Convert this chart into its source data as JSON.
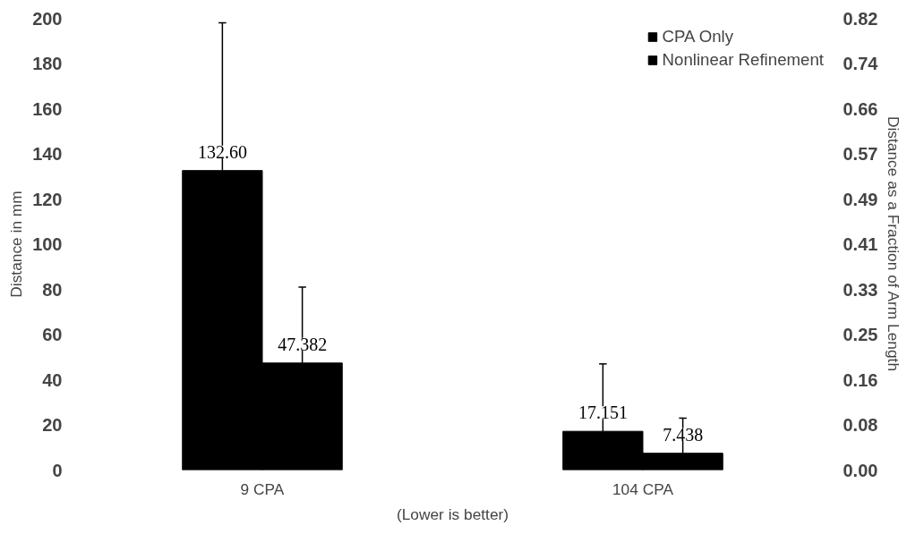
{
  "chart_data": {
    "type": "bar",
    "categories": [
      "9 CPA",
      "104 CPA"
    ],
    "xlabel": "(Lower is better)",
    "ylabel": "Distance in mm",
    "y2label": "Distance as a Fraction of Arm Length",
    "series": [
      {
        "name": "CPA Only",
        "color": "#000000",
        "values": [
          132.6,
          17.151
        ],
        "value_labels": [
          "132.60",
          "17.151"
        ],
        "errors": [
          [
            132.6,
            198
          ],
          [
            17.151,
            47
          ]
        ]
      },
      {
        "name": "Nonlinear Refinement",
        "color": "#000000",
        "values": [
          47.382,
          7.438
        ],
        "value_labels": [
          "47.382",
          "7.438"
        ],
        "errors": [
          [
            47.382,
            81
          ],
          [
            7.438,
            23
          ]
        ]
      }
    ],
    "ylim": [
      0,
      200
    ],
    "yticks": [
      0,
      20,
      40,
      60,
      80,
      100,
      120,
      140,
      160,
      180,
      200
    ],
    "y2lim": [
      0,
      0.82
    ],
    "y2ticks": [
      {
        "value": 0,
        "label": "0.00"
      },
      {
        "value": 0.082,
        "label": "0.08"
      },
      {
        "value": 0.164,
        "label": "0.16"
      },
      {
        "value": 0.246,
        "label": "0.25"
      },
      {
        "value": 0.328,
        "label": "0.33"
      },
      {
        "value": 0.41,
        "label": "0.41"
      },
      {
        "value": 0.492,
        "label": "0.49"
      },
      {
        "value": 0.574,
        "label": "0.57"
      },
      {
        "value": 0.656,
        "label": "0.66"
      },
      {
        "value": 0.738,
        "label": "0.74"
      },
      {
        "value": 0.82,
        "label": "0.82"
      }
    ],
    "grid": false,
    "legend": "top right"
  }
}
